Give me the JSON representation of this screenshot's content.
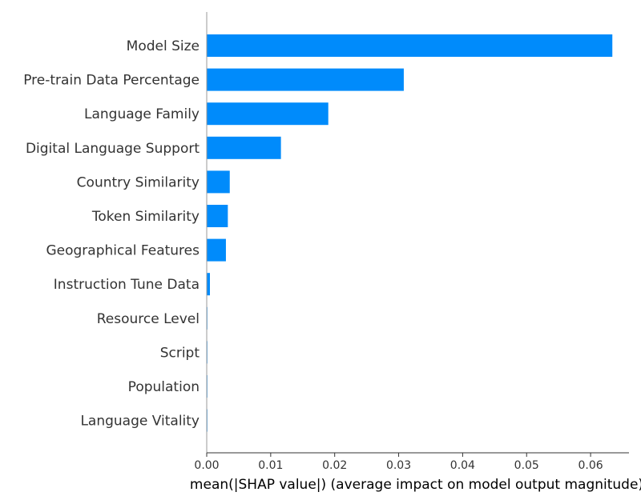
{
  "chart_data": {
    "type": "bar",
    "orientation": "horizontal",
    "title": "",
    "xlabel": "mean(|SHAP value|) (average impact on model output magnitude)",
    "ylabel": "",
    "categories": [
      "Model Size",
      "Pre-train Data Percentage",
      "Language Family",
      "Digital Language Support",
      "Country Similarity",
      "Token Similarity",
      "Geographical Features",
      "Instruction Tune Data",
      "Resource Level",
      "Script",
      "Population",
      "Language Vitality"
    ],
    "values": [
      0.0634,
      0.0308,
      0.019,
      0.0116,
      0.0036,
      0.0033,
      0.003,
      0.0005,
      0.0001,
      0.0001,
      0.0001,
      0.0001
    ],
    "xlim": [
      0,
      0.066
    ],
    "xticks": [
      "0.00",
      "0.01",
      "0.02",
      "0.03",
      "0.04",
      "0.05",
      "0.06"
    ],
    "bar_color": "#008bfb",
    "grid": false,
    "legend": "none"
  }
}
